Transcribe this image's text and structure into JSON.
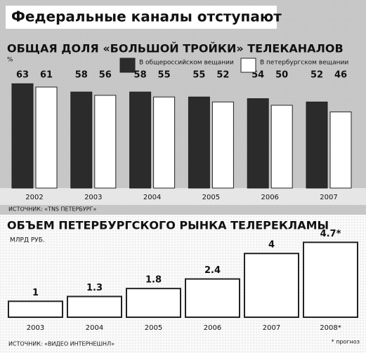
{
  "title": "Федеральные каналы отступают",
  "chart_data": [
    {
      "type": "bar",
      "title": "ОБЩАЯ ДОЛЯ «БОЛЬШОЙ ТРОЙКИ» ТЕЛЕКАНАЛОВ",
      "y_label": "%",
      "categories": [
        "2002",
        "2003",
        "2004",
        "2005",
        "2006",
        "2007"
      ],
      "series": [
        {
          "name": "В общероссийском вещании",
          "color": "#2b2b2b",
          "values": [
            63,
            58,
            58,
            55,
            54,
            52
          ]
        },
        {
          "name": "В петербургском вещании",
          "color": "#ffffff",
          "values": [
            61,
            56,
            55,
            52,
            50,
            46
          ]
        }
      ],
      "legend": "top-right",
      "source": "ИСТОЧНИК: «TNS ПЕТЕРБУРГ»"
    },
    {
      "type": "bar",
      "title": "ОБЪЕМ ПЕТЕРБУРГСКОГО РЫНКА ТЕЛЕРЕКЛАМЫ",
      "y_label": "МЛРД РУБ.",
      "categories": [
        "2003",
        "2004",
        "2005",
        "2006",
        "2007",
        "2008*"
      ],
      "values": [
        1,
        1.3,
        1.8,
        2.4,
        4,
        4.7
      ],
      "value_labels": [
        "1",
        "1.3",
        "1.8",
        "2.4",
        "4",
        "4.7*"
      ],
      "color": "#ffffff",
      "source": "ИСТОЧНИК: «ВИДЕО ИНТЕРНЕШНЛ»",
      "note": "* прогноз"
    }
  ]
}
